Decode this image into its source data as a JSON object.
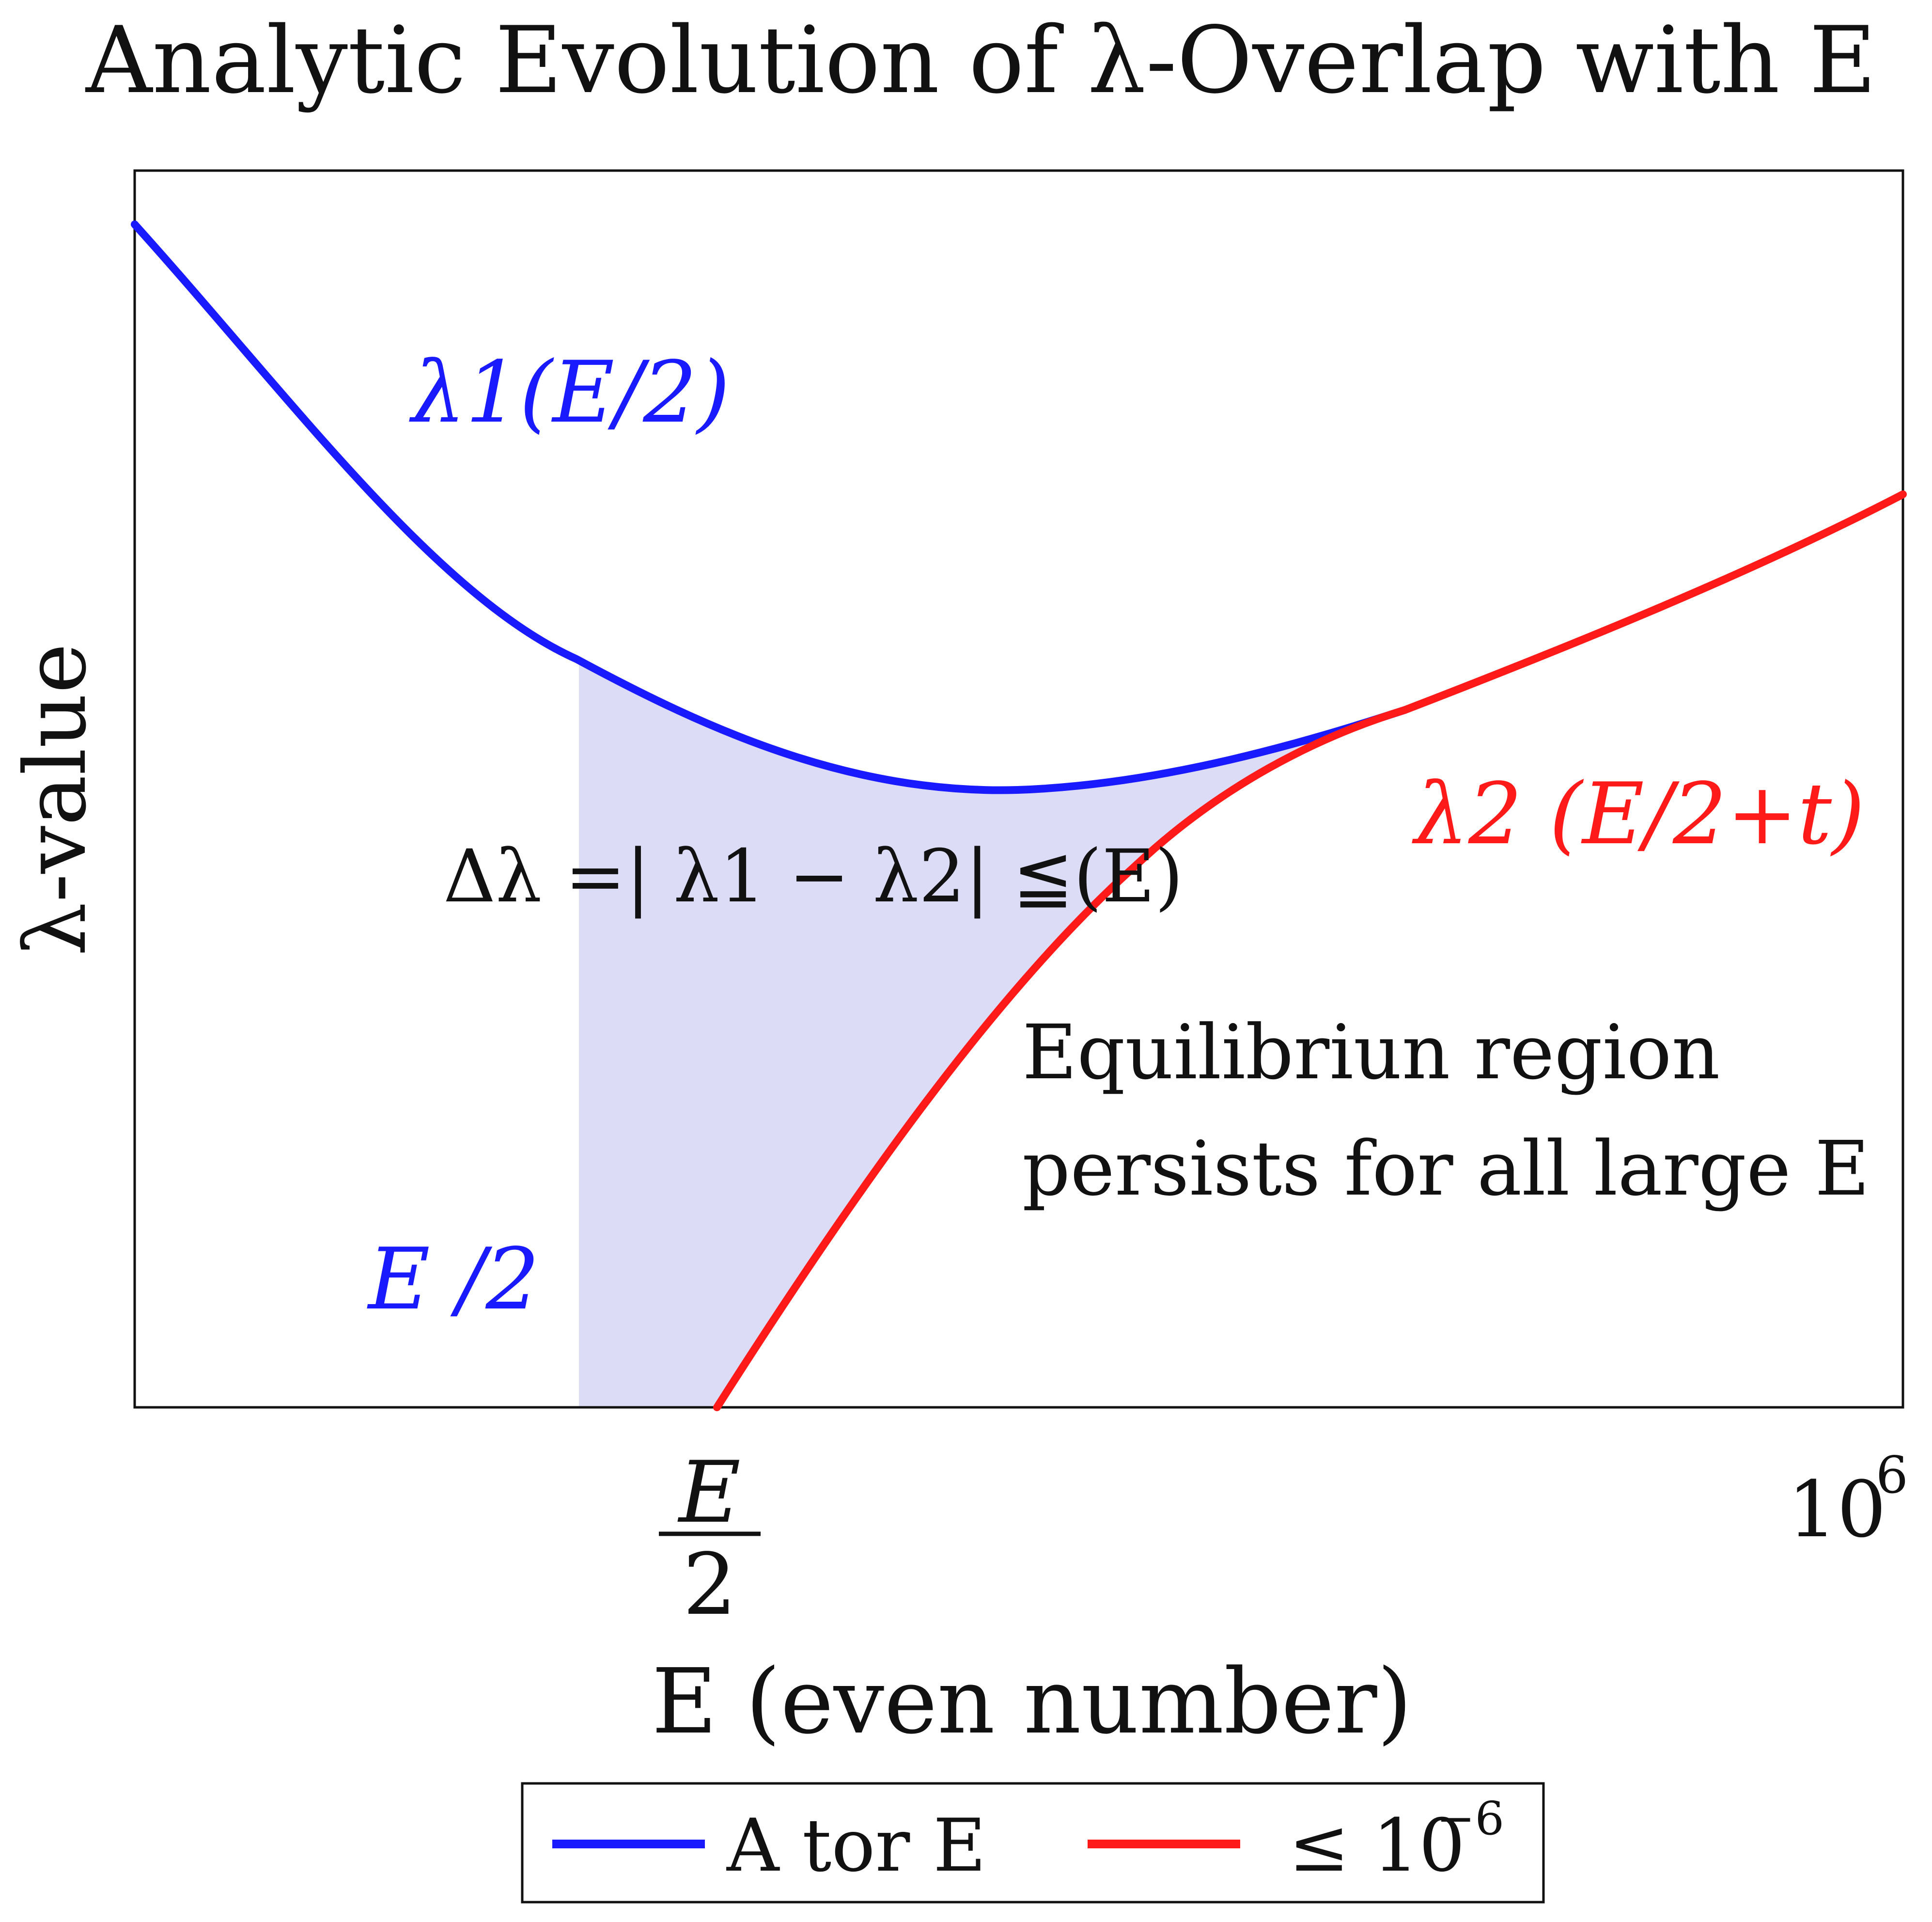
{
  "chart_data": {
    "type": "line",
    "title": "Analytic Evolution of λ-Overlap with E",
    "xlabel": "E (even number)",
    "ylabel": "λ-value",
    "x_ticks": [
      {
        "label_num": "E",
        "label_den": "2"
      },
      {
        "label_base": "10",
        "label_exp": "6"
      }
    ],
    "grid": false,
    "legend_placement": "bottom-center",
    "series": [
      {
        "label": "λ1(E/2)",
        "color": "#1a1aff"
      },
      {
        "label": "λ2 (E/2+t)",
        "color": "#ff1a1a"
      }
    ],
    "shaded_region": {
      "color": "#dcdcf7"
    },
    "annotations": {
      "delta": "Δλ =| λ1 − λ2| ≦(E)",
      "equilibrium_line1": "Equilibriun region",
      "equilibrium_line2": "persists for all large E",
      "e_half": "E /2"
    },
    "legend": [
      {
        "label": "A tor E",
        "color": "#1a1aff"
      },
      {
        "label": "≤ 10",
        "exp": "−6",
        "color": "#ff1a1a"
      }
    ]
  },
  "colors": {
    "blue": "#1a1aff",
    "red": "#ff1a1a",
    "fill": "#dcdcf7",
    "axes": "#111111"
  }
}
